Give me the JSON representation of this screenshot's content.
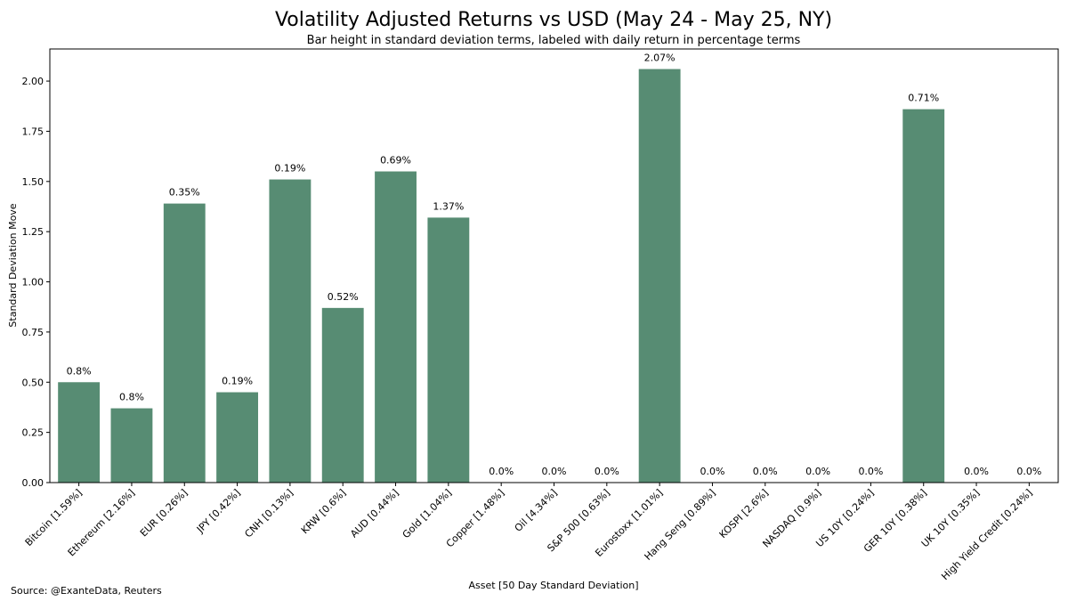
{
  "chart_data": {
    "type": "bar",
    "title": "Volatility Adjusted Returns vs USD (May 24 - May 25, NY)",
    "subtitle": "Bar height in standard deviation terms, labeled with daily return in percentage terms",
    "xlabel": "Asset [50 Day Standard Deviation]",
    "ylabel": "Standard Deviation Move",
    "source": "Source: @ExanteData, Reuters",
    "ylim": [
      0,
      2.16
    ],
    "yticks": [
      0.0,
      0.25,
      0.5,
      0.75,
      1.0,
      1.25,
      1.5,
      1.75,
      2.0
    ],
    "ytick_labels": [
      "0.00",
      "0.25",
      "0.50",
      "0.75",
      "1.00",
      "1.25",
      "1.50",
      "1.75",
      "2.00"
    ],
    "grid": false,
    "legend": "none",
    "bar_color": "#578c73",
    "categories": [
      "Bitcoin [1.59%]",
      "Ethereum [2.16%]",
      "EUR [0.26%]",
      "JPY [0.42%]",
      "CNH [0.13%]",
      "KRW [0.6%]",
      "AUD [0.44%]",
      "Gold [1.04%]",
      "Copper [1.48%]",
      "Oil [4.34%]",
      "S&P 500 [0.63%]",
      "Eurostoxx [1.01%]",
      "Hang Seng [0.89%]",
      "KOSPI [2.6%]",
      "NASDAQ [0.9%]",
      "US 10Y [0.24%]",
      "GER 10Y [0.38%]",
      "UK 10Y [0.35%]",
      "High Yield Credit [0.24%]"
    ],
    "values": [
      0.5,
      0.37,
      1.39,
      0.45,
      1.51,
      0.87,
      1.55,
      1.32,
      0.0,
      0.0,
      0.0,
      2.06,
      0.0,
      0.0,
      0.0,
      0.0,
      1.86,
      0.0,
      0.0
    ],
    "value_labels": [
      "0.8%",
      "0.8%",
      "0.35%",
      "0.19%",
      "0.19%",
      "0.52%",
      "0.69%",
      "1.37%",
      "0.0%",
      "0.0%",
      "0.0%",
      "2.07%",
      "0.0%",
      "0.0%",
      "0.0%",
      "0.0%",
      "0.71%",
      "0.0%",
      "0.0%"
    ]
  }
}
